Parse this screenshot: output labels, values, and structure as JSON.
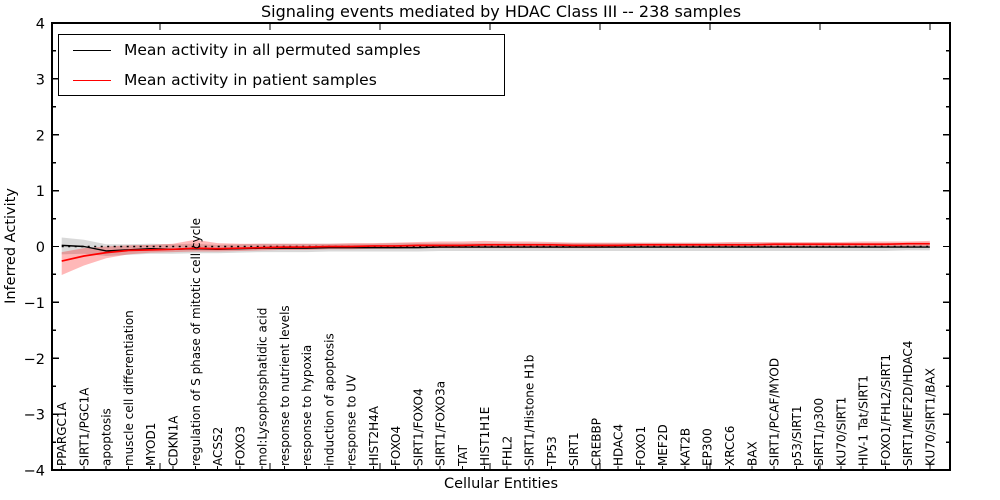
{
  "title": "Signaling events mediated by HDAC Class III -- 238 samples",
  "legend": {
    "items": [
      {
        "label": "Mean activity in all permuted samples",
        "color": "#000000"
      },
      {
        "label": "Mean activity in patient samples",
        "color": "#ff0000"
      }
    ]
  },
  "axes": {
    "ylabel": "Inferred Activity",
    "xlabel": "Cellular Entities",
    "ytick_labels": [
      "4",
      "3",
      "2",
      "1",
      "0",
      "−1",
      "−2",
      "−3",
      "−4"
    ],
    "ytick_values": [
      4,
      3,
      2,
      1,
      0,
      -1,
      -2,
      -3,
      -4
    ]
  },
  "chart_data": {
    "type": "line",
    "title": "Signaling events mediated by HDAC Class III -- 238 samples",
    "xlabel": "Cellular Entities",
    "ylabel": "Inferred Activity",
    "ylim": [
      -4,
      4
    ],
    "grid": false,
    "legend_position": "upper left",
    "zero_line": {
      "style": "dotted",
      "color": "#000000"
    },
    "categories": [
      "PPARGC1A",
      "SIRT1/PGC1A",
      "apoptosis",
      "muscle cell differentiation",
      "MYOD1",
      "CDKN1A",
      "regulation of S phase of mitotic cell cycle",
      "ACSS2",
      "FOXO3",
      "mol:Lysophosphatidic acid",
      "response to nutrient levels",
      "response to hypoxia",
      "induction of apoptosis",
      "response to UV",
      "HIST2H4A",
      "FOXO4",
      "SIRT1/FOXO4",
      "SIRT1/FOXO3a",
      "TAT",
      "HIST1H1E",
      "FHL2",
      "SIRT1/Histone H1b",
      "TP53",
      "SIRT1",
      "CREBBP",
      "HDAC4",
      "FOXO1",
      "MEF2D",
      "KAT2B",
      "EP300",
      "XRCC6",
      "BAX",
      "SIRT1/PCAF/MYOD",
      "p53/SIRT1",
      "SIRT1/p300",
      "KU70/SIRT1",
      "HIV-1 Tat/SIRT1",
      "FOXO1/FHL2/SIRT1",
      "SIRT1/MEF2D/HDAC4",
      "KU70/SIRT1/BAX"
    ],
    "series": [
      {
        "name": "Mean activity in all permuted samples",
        "color": "#000000",
        "line_width": 1.4,
        "values": [
          0.02,
          0.0,
          -0.08,
          -0.06,
          -0.04,
          -0.05,
          -0.04,
          -0.05,
          -0.04,
          -0.03,
          -0.03,
          -0.03,
          -0.02,
          -0.02,
          -0.02,
          -0.02,
          -0.02,
          -0.01,
          -0.01,
          -0.01,
          -0.01,
          -0.01,
          -0.01,
          -0.01,
          -0.01,
          -0.01,
          -0.01,
          -0.01,
          -0.01,
          -0.01,
          -0.01,
          -0.01,
          -0.01,
          -0.01,
          -0.01,
          -0.01,
          -0.01,
          -0.01,
          -0.01,
          -0.01
        ],
        "band": {
          "color": "rgba(120,120,120,0.28)",
          "low": [
            -0.14,
            -0.13,
            -0.17,
            -0.15,
            -0.13,
            -0.13,
            -0.12,
            -0.12,
            -0.11,
            -0.1,
            -0.1,
            -0.1,
            -0.09,
            -0.09,
            -0.09,
            -0.09,
            -0.09,
            -0.08,
            -0.08,
            -0.08,
            -0.08,
            -0.08,
            -0.08,
            -0.08,
            -0.08,
            -0.08,
            -0.08,
            -0.08,
            -0.08,
            -0.08,
            -0.08,
            -0.08,
            -0.08,
            -0.08,
            -0.08,
            -0.08,
            -0.08,
            -0.08,
            -0.07,
            -0.07
          ],
          "high": [
            0.16,
            0.12,
            0.04,
            0.04,
            0.05,
            0.04,
            0.05,
            0.03,
            0.04,
            0.05,
            0.05,
            0.05,
            0.05,
            0.05,
            0.05,
            0.06,
            0.06,
            0.06,
            0.06,
            0.06,
            0.06,
            0.06,
            0.06,
            0.06,
            0.06,
            0.06,
            0.06,
            0.06,
            0.06,
            0.06,
            0.06,
            0.06,
            0.06,
            0.06,
            0.06,
            0.06,
            0.06,
            0.06,
            0.06,
            0.06
          ]
        }
      },
      {
        "name": "Mean activity in patient samples",
        "color": "#ff0000",
        "line_width": 1.7,
        "values": [
          -0.26,
          -0.17,
          -0.11,
          -0.07,
          -0.06,
          -0.05,
          -0.03,
          -0.04,
          -0.03,
          -0.02,
          -0.01,
          -0.01,
          0.0,
          0.0,
          0.01,
          0.01,
          0.02,
          0.02,
          0.02,
          0.03,
          0.03,
          0.03,
          0.03,
          0.02,
          0.02,
          0.02,
          0.03,
          0.03,
          0.03,
          0.03,
          0.03,
          0.03,
          0.04,
          0.04,
          0.04,
          0.04,
          0.04,
          0.04,
          0.05,
          0.05
        ],
        "band": {
          "color": "rgba(255,0,0,0.28)",
          "low": [
            -0.51,
            -0.34,
            -0.21,
            -0.14,
            -0.11,
            -0.1,
            -0.09,
            -0.09,
            -0.08,
            -0.07,
            -0.06,
            -0.06,
            -0.05,
            -0.05,
            -0.04,
            -0.04,
            -0.03,
            -0.03,
            -0.03,
            -0.03,
            -0.03,
            -0.03,
            -0.03,
            -0.03,
            -0.03,
            -0.02,
            -0.02,
            -0.02,
            -0.02,
            -0.02,
            -0.01,
            -0.01,
            -0.01,
            -0.01,
            -0.01,
            0.0,
            0.0,
            0.0,
            0.0,
            0.01
          ],
          "high": [
            -0.1,
            -0.03,
            0.0,
            0.02,
            0.03,
            0.05,
            0.12,
            0.06,
            0.05,
            0.05,
            0.05,
            0.05,
            0.05,
            0.06,
            0.06,
            0.07,
            0.08,
            0.09,
            0.09,
            0.1,
            0.09,
            0.09,
            0.08,
            0.07,
            0.07,
            0.07,
            0.07,
            0.07,
            0.07,
            0.07,
            0.08,
            0.08,
            0.08,
            0.08,
            0.08,
            0.08,
            0.09,
            0.09,
            0.09,
            0.1
          ]
        }
      }
    ]
  }
}
